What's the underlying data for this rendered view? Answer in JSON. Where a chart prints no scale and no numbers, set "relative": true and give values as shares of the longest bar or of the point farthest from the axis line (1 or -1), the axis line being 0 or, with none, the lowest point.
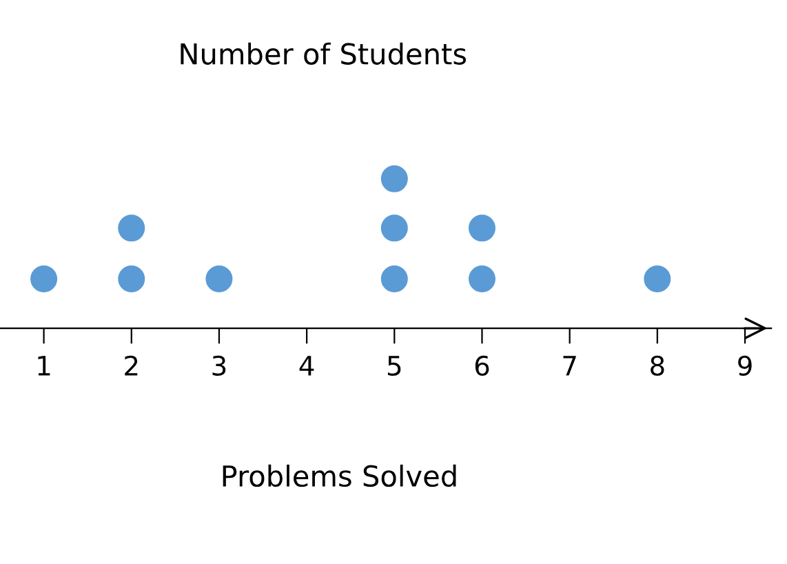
{
  "chart_data": {
    "type": "scatter",
    "title": "Number of Students",
    "xlabel": "Problems Solved",
    "x": [
      1,
      2,
      2,
      3,
      5,
      5,
      5,
      6,
      6,
      8
    ],
    "series": [
      {
        "color": "#5b9bd5",
        "values": [
          0.33,
          0.33,
          0.67,
          0.33,
          0.33,
          0.67,
          1,
          0.33,
          0.67,
          0.33
        ]
      }
    ],
    "xlim": [
      0.5,
      9.3
    ],
    "xticks": [
      1,
      2,
      3,
      4,
      5,
      6,
      7,
      8,
      9
    ],
    "relative": true,
    "tick_labels": "x",
    "marker": "circle",
    "grid": false,
    "legend": false
  }
}
